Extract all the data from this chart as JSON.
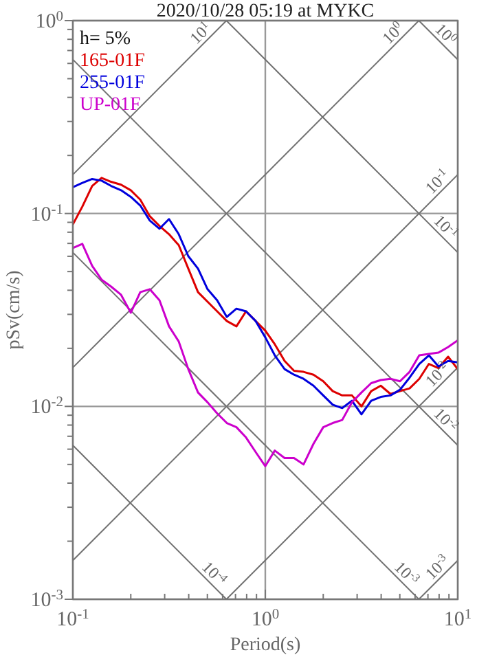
{
  "chart_data": {
    "type": "line",
    "title": "2020/10/28 05:19 at MYKC",
    "xlabel": "Period(s)",
    "ylabel": "pSv(cm/s)",
    "log": "xy",
    "grid": true,
    "legend": "top left",
    "xlim": [
      0.1,
      10
    ],
    "ylim": [
      0.001,
      1
    ],
    "xticks": [
      {
        "value": 0.1,
        "label": "10$^{-1}$"
      },
      {
        "value": 0.2,
        "label": null
      },
      {
        "value": 0.3,
        "label": null
      },
      {
        "value": 0.4,
        "label": null
      },
      {
        "value": 0.5,
        "label": null
      },
      {
        "value": 0.6,
        "label": null
      },
      {
        "value": 0.7,
        "label": null
      },
      {
        "value": 0.8,
        "label": null
      },
      {
        "value": 0.9,
        "label": null
      },
      {
        "value": 1,
        "label": "10$^{0}$"
      },
      {
        "value": 2,
        "label": null
      },
      {
        "value": 3,
        "label": null
      },
      {
        "value": 4,
        "label": null
      },
      {
        "value": 5,
        "label": null
      },
      {
        "value": 6,
        "label": null
      },
      {
        "value": 7,
        "label": null
      },
      {
        "value": 8,
        "label": null
      },
      {
        "value": 9,
        "label": null
      },
      {
        "value": 10,
        "label": "10$^{1}$"
      }
    ],
    "yticks": [
      {
        "value": 0.001,
        "label": "10$^{-3}$"
      },
      {
        "value": 0.002,
        "label": null
      },
      {
        "value": 0.003,
        "label": null
      },
      {
        "value": 0.004,
        "label": null
      },
      {
        "value": 0.005,
        "label": null
      },
      {
        "value": 0.006,
        "label": null
      },
      {
        "value": 0.007,
        "label": null
      },
      {
        "value": 0.008,
        "label": null
      },
      {
        "value": 0.009,
        "label": null
      },
      {
        "value": 0.01,
        "label": "10$^{-2}$"
      },
      {
        "value": 0.02,
        "label": null
      },
      {
        "value": 0.03,
        "label": null
      },
      {
        "value": 0.04,
        "label": null
      },
      {
        "value": 0.05,
        "label": null
      },
      {
        "value": 0.06,
        "label": null
      },
      {
        "value": 0.07,
        "label": null
      },
      {
        "value": 0.08,
        "label": null
      },
      {
        "value": 0.09,
        "label": null
      },
      {
        "value": 0.1,
        "label": "10$^{-1}$"
      },
      {
        "value": 0.2,
        "label": null
      },
      {
        "value": 0.3,
        "label": null
      },
      {
        "value": 0.4,
        "label": null
      },
      {
        "value": 0.5,
        "label": null
      },
      {
        "value": 0.6,
        "label": null
      },
      {
        "value": 0.7,
        "label": null
      },
      {
        "value": 0.8,
        "label": null
      },
      {
        "value": 0.9,
        "label": null
      },
      {
        "value": 1,
        "label": "10$^{0}$"
      }
    ],
    "x": [
      0.1,
      0.112,
      0.126,
      0.141,
      0.158,
      0.178,
      0.2,
      0.224,
      0.251,
      0.282,
      0.316,
      0.355,
      0.398,
      0.447,
      0.501,
      0.562,
      0.631,
      0.708,
      0.794,
      0.891,
      1,
      1.12,
      1.26,
      1.41,
      1.58,
      1.78,
      2,
      2.24,
      2.51,
      2.82,
      3.16,
      3.55,
      3.98,
      4.47,
      5.01,
      5.62,
      6.31,
      7.08,
      7.94,
      8.91,
      10
    ],
    "series": [
      {
        "name": "165-01F",
        "color": "#dd0000",
        "values": [
          0.0877,
          0.1086,
          0.139,
          0.153,
          0.146,
          0.141,
          0.132,
          0.118,
          0.0968,
          0.0862,
          0.0781,
          0.0685,
          0.0518,
          0.0391,
          0.0349,
          0.0311,
          0.0277,
          0.026,
          0.0311,
          0.0277,
          0.0247,
          0.021,
          0.0172,
          0.0153,
          0.0151,
          0.0146,
          0.0135,
          0.012,
          0.0114,
          0.0114,
          0.01,
          0.012,
          0.0128,
          0.0116,
          0.012,
          0.0124,
          0.0139,
          0.0166,
          0.0158,
          0.0181,
          0.0156
        ]
      },
      {
        "name": "255-01F",
        "color": "#0000dd",
        "values": [
          0.137,
          0.144,
          0.151,
          0.148,
          0.139,
          0.132,
          0.122,
          0.11,
          0.092,
          0.0834,
          0.0936,
          0.0781,
          0.0601,
          0.0518,
          0.0405,
          0.0355,
          0.0291,
          0.0321,
          0.0311,
          0.0277,
          0.0228,
          0.0184,
          0.0156,
          0.0146,
          0.0139,
          0.0128,
          0.0114,
          0.0102,
          0.0098,
          0.0107,
          0.0091,
          0.0107,
          0.0112,
          0.0114,
          0.0122,
          0.0141,
          0.0166,
          0.0184,
          0.0161,
          0.0172,
          0.0169
        ]
      },
      {
        "name": "UP-01F",
        "color": "#cc00cc",
        "values": [
          0.0663,
          0.0696,
          0.0535,
          0.0454,
          0.0418,
          0.0379,
          0.0306,
          0.0391,
          0.0405,
          0.0355,
          0.026,
          0.0217,
          0.0156,
          0.0118,
          0.0105,
          0.0092,
          0.0082,
          0.0078,
          0.0069,
          0.0058,
          0.0049,
          0.0059,
          0.0054,
          0.0054,
          0.005,
          0.0064,
          0.0078,
          0.0082,
          0.0085,
          0.0105,
          0.0118,
          0.0132,
          0.0137,
          0.0139,
          0.0135,
          0.0151,
          0.0184,
          0.0187,
          0.019,
          0.0203,
          0.022
        ]
      },
      {
        "type": "line",
        "color": "#707070",
        "x": [
          0.1,
          0.628
        ],
        "values": [
          0.159,
          1
        ]
      },
      {
        "type": "line",
        "color": "#707070",
        "x": [
          0.1,
          6.28
        ],
        "values": [
          0.0159,
          1
        ]
      },
      {
        "type": "line",
        "color": "#707070",
        "x": [
          0.1,
          10
        ],
        "values": [
          0.00159,
          0.159
        ]
      },
      {
        "type": "line",
        "color": "#707070",
        "x": [
          0.628,
          10
        ],
        "values": [
          0.001,
          0.0159
        ]
      },
      {
        "type": "line",
        "color": "#707070",
        "x": [
          6.28,
          10
        ],
        "values": [
          0.001,
          0.00159
        ]
      },
      {
        "type": "line",
        "color": "#707070",
        "x": [
          6.28,
          10
        ],
        "values": [
          1,
          0.628
        ]
      },
      {
        "type": "line",
        "color": "#707070",
        "x": [
          0.628,
          10
        ],
        "values": [
          1,
          0.0628
        ]
      },
      {
        "type": "line",
        "color": "#707070",
        "x": [
          0.1,
          10
        ],
        "values": [
          0.628,
          0.00628
        ]
      },
      {
        "type": "line",
        "color": "#707070",
        "x": [
          0.1,
          6.28
        ],
        "values": [
          0.0628,
          0.001
        ]
      },
      {
        "type": "line",
        "color": "#707070",
        "x": [
          0.1,
          0.628
        ],
        "values": [
          0.00628,
          0.001
        ]
      }
    ],
    "annotations": [
      "h= 5%",
      {
        "text": "10$^{1}$",
        "x": 0.5,
        "y": 0.795
      },
      {
        "text": "10$^{0}$",
        "x": 5,
        "y": 0.795
      },
      {
        "text": "10$^{-1}$",
        "x": 8.5,
        "y": 0.135
      },
      {
        "text": "10$^{-2}$",
        "x": 8.5,
        "y": 0.0135
      },
      {
        "text": "10$^{-3}$",
        "x": 8.5,
        "y": 0.00135
      },
      {
        "text": "10$^{0}$",
        "x": 8,
        "y": 0.785
      },
      {
        "text": "10$^{-1}$",
        "x": 8,
        "y": 0.0785
      },
      {
        "text": "10$^{-2}$",
        "x": 8,
        "y": 0.00785
      },
      {
        "text": "10$^{-3}$",
        "x": 5,
        "y": 0.001256
      },
      {
        "text": "10$^{-4}$",
        "x": 0.5,
        "y": 0.001256
      }
    ]
  }
}
